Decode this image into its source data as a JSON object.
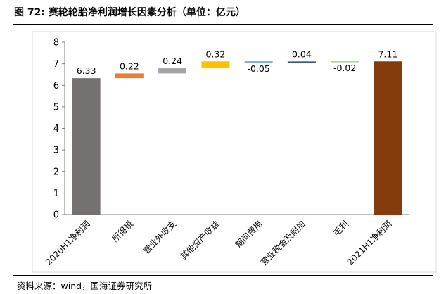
{
  "figure": {
    "title": "图 72:  赛轮轮胎净利润增长因素分析（单位：亿元）",
    "source": "资料来源：wind，国海证券研究所"
  },
  "chart_data": {
    "type": "bar",
    "subtype": "waterfall",
    "title": "",
    "xlabel": "",
    "ylabel": "",
    "ylim": [
      0,
      8
    ],
    "yticks": [
      0,
      1,
      2,
      3,
      4,
      5,
      6,
      7,
      8
    ],
    "grid": false,
    "legend": "none",
    "categories": [
      "2020H1净利润",
      "所得税",
      "营业外收支",
      "其他资产收益",
      "期间费用",
      "营业税金及附加",
      "毛利",
      "2021H1净利润"
    ],
    "bars": [
      {
        "label": "2020H1净利润",
        "kind": "total",
        "base": 0,
        "value": 6.33,
        "display": "6.33",
        "color": "#767171"
      },
      {
        "label": "所得税",
        "kind": "change",
        "base": 6.33,
        "value": 0.22,
        "display": "0.22",
        "color": "#ED7D31"
      },
      {
        "label": "营业外收支",
        "kind": "change",
        "base": 6.55,
        "value": 0.24,
        "display": "0.24",
        "color": "#A5A5A5"
      },
      {
        "label": "其他资产收益",
        "kind": "change",
        "base": 6.79,
        "value": 0.32,
        "display": "0.32",
        "color": "#FFC000"
      },
      {
        "label": "期间费用",
        "kind": "change",
        "base": 7.11,
        "value": -0.05,
        "display": "-0.05",
        "color": "#5B9BD5"
      },
      {
        "label": "营业税金及附加",
        "kind": "change",
        "base": 7.06,
        "value": 0.04,
        "display": "0.04",
        "color": "#264478"
      },
      {
        "label": "毛利",
        "kind": "change",
        "base": 7.1,
        "value": -0.02,
        "display": "-0.02",
        "color": "#A9D18E"
      },
      {
        "label": "2021H1净利润",
        "kind": "total",
        "base": 0,
        "value": 7.11,
        "display": "7.11",
        "color": "#843C0C"
      }
    ]
  }
}
